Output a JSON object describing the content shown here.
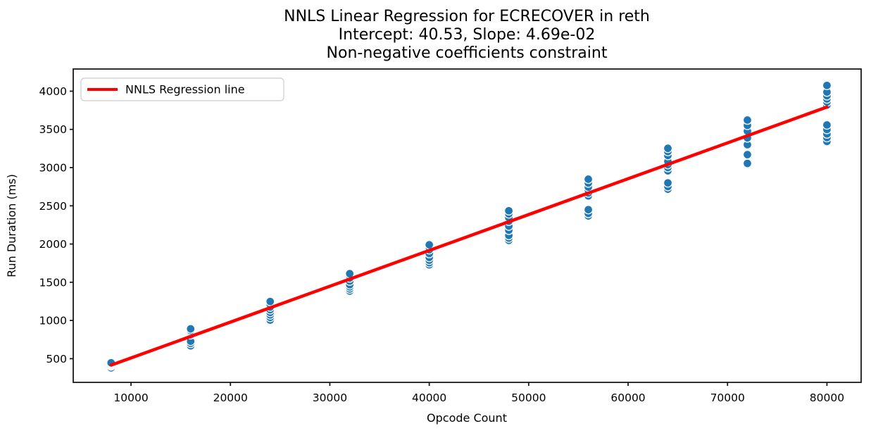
{
  "chart_data": {
    "type": "scatter",
    "title": "NNLS Linear Regression for ECRECOVER in reth",
    "subtitle_lines": [
      "Intercept: 40.53, Slope: 4.69e-02",
      "Non-negative coefficients constraint"
    ],
    "xlabel": "Opcode Count",
    "ylabel": "Run Duration (ms)",
    "xlim": [
      4190,
      83440
    ],
    "ylim": [
      190,
      4290
    ],
    "x_ticks": [
      10000,
      20000,
      30000,
      40000,
      50000,
      60000,
      70000,
      80000
    ],
    "y_ticks": [
      500,
      1000,
      1500,
      2000,
      2500,
      3000,
      3500,
      4000
    ],
    "grid": false,
    "legend": {
      "position": "upper-left",
      "label": "NNLS Regression line"
    },
    "colors": {
      "scatter": "#1f77b4",
      "scatter_edge": "#ffffff",
      "line": "#ff0000",
      "spine": "#1a1a1a",
      "legend_border": "#cccccc"
    },
    "regression": {
      "intercept": 40.53,
      "slope": 0.0469,
      "x_start": 8000,
      "x_end": 80000
    },
    "scatter_clusters": [
      {
        "x": 8000,
        "y": [
          380,
          405,
          412,
          418,
          424,
          430,
          438,
          446
        ]
      },
      {
        "x": 16000,
        "y": [
          668,
          700,
          728,
          812,
          832,
          850,
          868,
          890
        ]
      },
      {
        "x": 24000,
        "y": [
          1005,
          1040,
          1072,
          1105,
          1140,
          1175,
          1210,
          1248
        ]
      },
      {
        "x": 32000,
        "y": [
          1385,
          1412,
          1440,
          1468,
          1515,
          1555,
          1585,
          1612
        ]
      },
      {
        "x": 40000,
        "y": [
          1728,
          1756,
          1788,
          1825,
          1875,
          1925,
          1958,
          1990
        ]
      },
      {
        "x": 48000,
        "y": [
          2048,
          2078,
          2112,
          2180,
          2235,
          2298,
          2345,
          2395,
          2435
        ]
      },
      {
        "x": 56000,
        "y": [
          2368,
          2400,
          2450,
          2630,
          2668,
          2705,
          2745,
          2798,
          2848
        ]
      },
      {
        "x": 64000,
        "y": [
          2718,
          2752,
          2800,
          2958,
          3000,
          3040,
          3082,
          3158,
          3210,
          3252
        ]
      },
      {
        "x": 72000,
        "y": [
          3055,
          3170,
          3300,
          3388,
          3478,
          3552,
          3622
        ]
      },
      {
        "x": 80000,
        "y": [
          3342,
          3392,
          3440,
          3498,
          3558,
          3818,
          3858,
          3898,
          3940,
          3988,
          4075
        ]
      }
    ]
  }
}
